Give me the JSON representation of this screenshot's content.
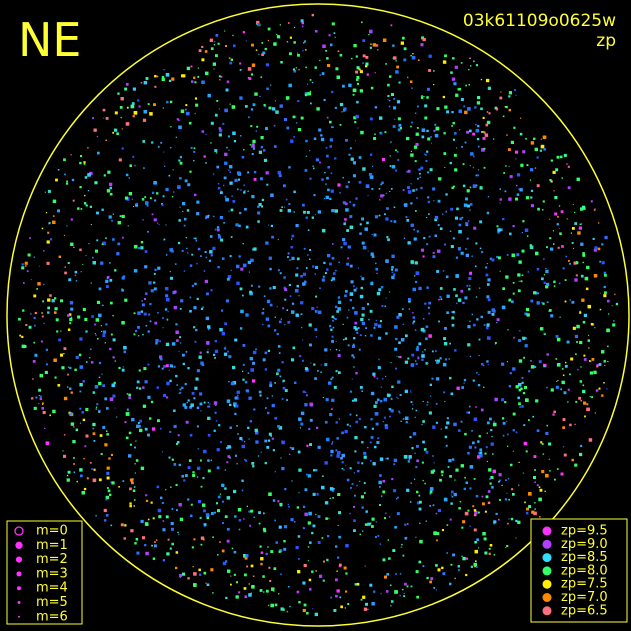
{
  "header": {
    "direction": "NE",
    "image_id": "03k61109o0625w",
    "mode": "zp"
  },
  "magnitude_legend": [
    "m=0",
    "m=1",
    "m=2",
    "m=3",
    "m=4",
    "m=5",
    "m=6"
  ],
  "zp_legend": [
    {
      "label": "zp=9.5",
      "color": "#ff33ff"
    },
    {
      "label": "zp=9.0",
      "color": "#b040ff"
    },
    {
      "label": "zp=8.5",
      "color": "#33ddff"
    },
    {
      "label": "zp=8.0",
      "color": "#33ff66"
    },
    {
      "label": "zp=7.5",
      "color": "#ffee00"
    },
    {
      "label": "zp=7.0",
      "color": "#ff8a00"
    },
    {
      "label": "zp=6.5",
      "color": "#ff6f7f"
    }
  ]
}
